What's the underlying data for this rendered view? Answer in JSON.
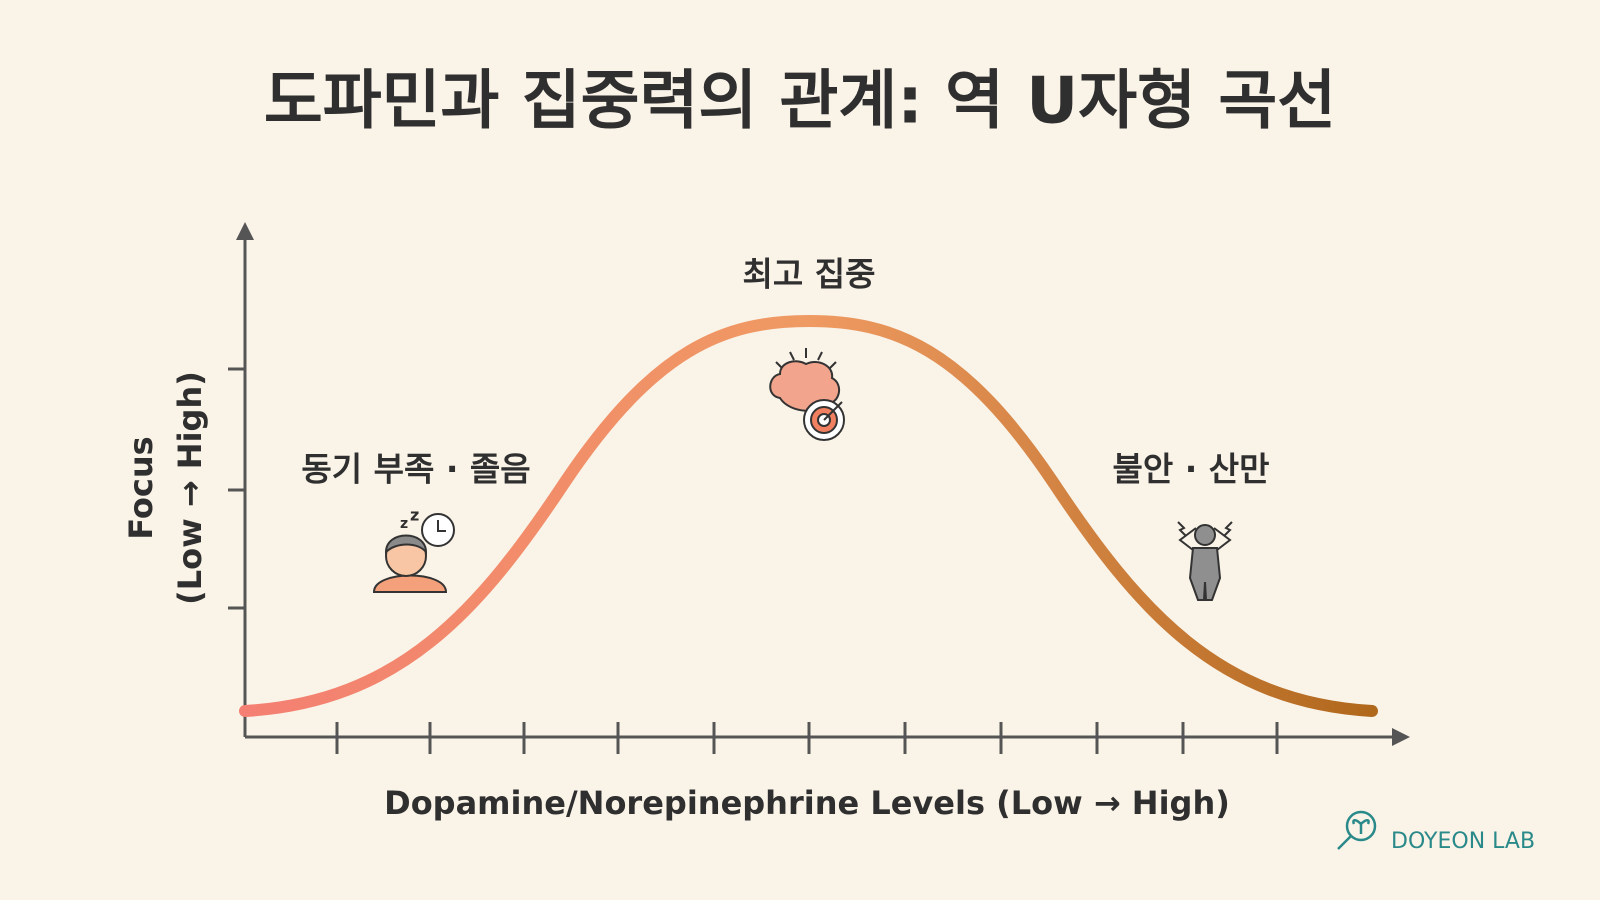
{
  "header": {
    "title": "도파민과 집중력의 관계: 역 U자형 곡선"
  },
  "axes": {
    "x_label": "Dopamine/Norepinephrine Levels (Low → High)",
    "y_label_line1": "Focus",
    "y_label_line2": "(Low → High)"
  },
  "zones": [
    {
      "label": "동기 부족 · 졸음"
    },
    {
      "label": "최고 집중"
    },
    {
      "label": "불안 · 산만"
    }
  ],
  "brand": {
    "name": "DOYEON LAB"
  }
}
